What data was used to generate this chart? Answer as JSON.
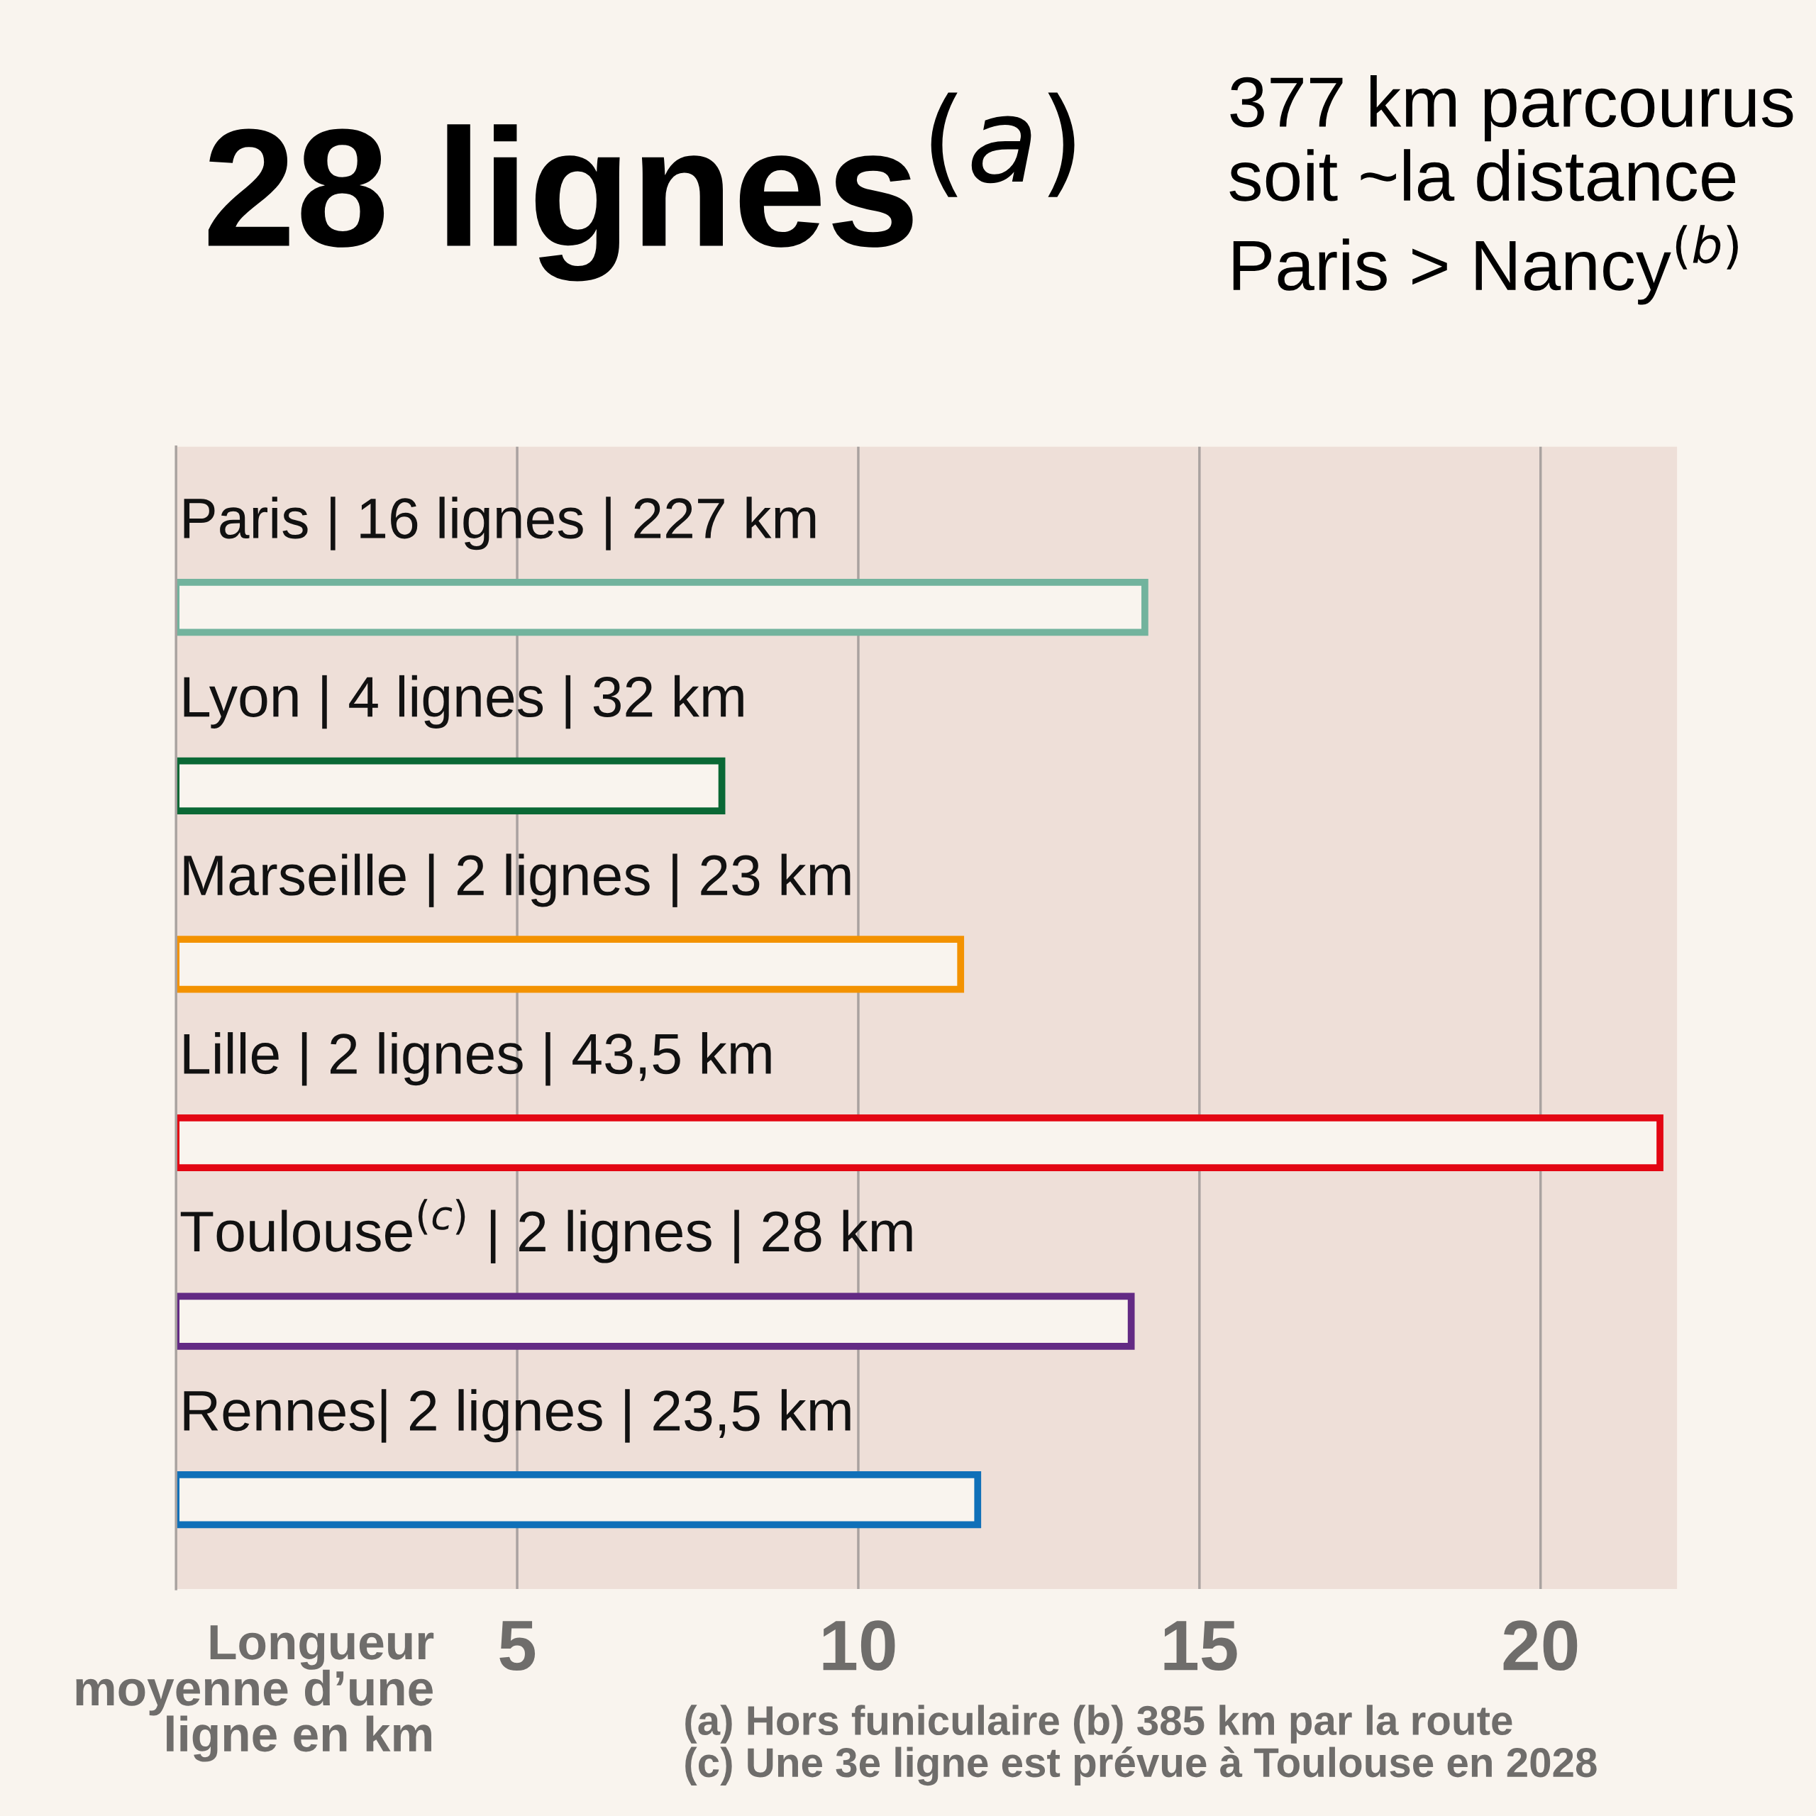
{
  "chart_data": {
    "type": "bar",
    "orientation": "horizontal",
    "title": "28 lignes$^{(a)}$",
    "subtitle": "377 km parcourus soit ~la distance Paris > Nancy$^{(b)}$",
    "categories": [
      "Paris | 16 lignes | 227 km",
      "Lyon | 4 lignes | 32 km",
      "Marseille | 2 lignes | 23 km",
      "Lille | 2 lignes | 43,5 km",
      "Toulouse$^{(c)}$ | 2 lignes | 28 km",
      "Rennes| 2 lignes | 23,5 km"
    ],
    "values": [
      14.2,
      8,
      11.5,
      21.75,
      14,
      11.75
    ],
    "colors": [
      "#72b39d",
      "#0a6835",
      "#f39200",
      "#e30613",
      "#632a84",
      "#1070b8"
    ],
    "xlabel": "Longueur moyenne d’une ligne en km",
    "xlim": [
      0,
      22
    ],
    "xticks": [
      5,
      10,
      15,
      20
    ],
    "grid": "x",
    "annotations": [
      "(a) Hors funiculaire (b) 385 km par la route",
      "(c) Une 3e ligne est prévue à Toulouse en 2028"
    ]
  }
}
